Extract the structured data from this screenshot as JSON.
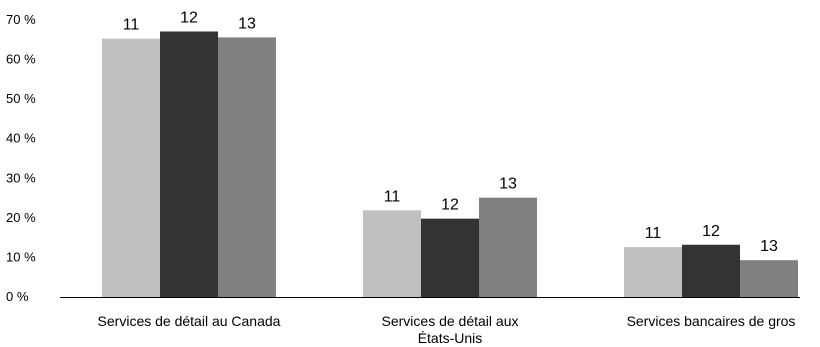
{
  "chart_data": {
    "type": "bar",
    "categories": [
      [
        "Services de détail au Canada"
      ],
      [
        "Services de détail aux",
        "États-Unis"
      ],
      [
        "Services bancaires de gros"
      ]
    ],
    "series": [
      {
        "data_label": "11",
        "color": "#c0c0c0",
        "values": [
          65.3,
          21.9,
          12.6
        ]
      },
      {
        "data_label": "12",
        "color": "#333333",
        "values": [
          67.1,
          19.8,
          13.2
        ]
      },
      {
        "data_label": "13",
        "color": "#808080",
        "values": [
          65.6,
          25.1,
          9.3
        ]
      }
    ],
    "yticks": [
      "0 %",
      "10 %",
      "20 %",
      "30 %",
      "40 %",
      "50 %",
      "60 %",
      "70 %"
    ],
    "ylim": [
      0,
      70
    ],
    "grid": false,
    "legend": "none"
  }
}
